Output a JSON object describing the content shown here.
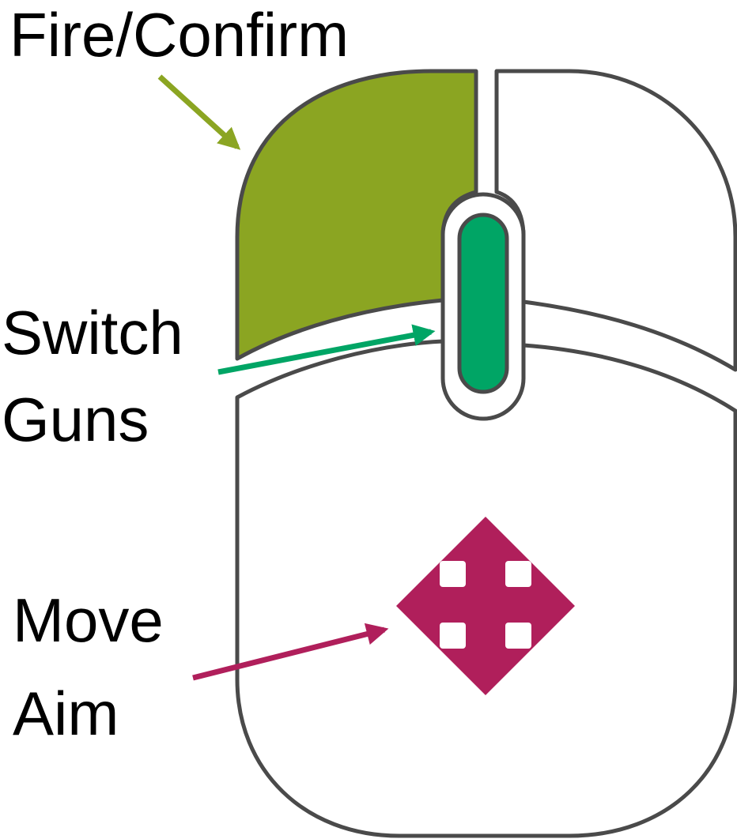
{
  "labels": {
    "fire": "Fire/Confirm",
    "switch_line1": "Switch",
    "switch_line2": "Guns",
    "move_line1": "Move",
    "move_line2": "Aim"
  },
  "colors": {
    "left_button": "#8ba522",
    "scroll_wheel": "#00a565",
    "move_icon": "#b01f5b",
    "outline": "#4a4a4a",
    "fire_arrow": "#8ba522",
    "switch_arrow": "#00a565",
    "move_arrow": "#b01f5b"
  },
  "icons": {
    "move": "four-way-arrow-icon"
  }
}
